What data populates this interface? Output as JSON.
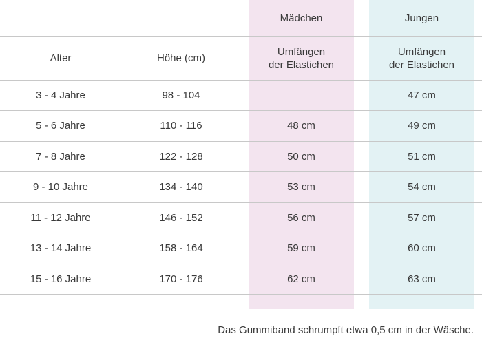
{
  "header": {
    "girls_label": "Mädchen",
    "boys_label": "Jungen",
    "age_label": "Alter",
    "height_label": "Höhe (cm)",
    "girls_measure": "Umfängen\nder Elastichen",
    "boys_measure": "Umfängen\nder Elastichen"
  },
  "rows": [
    {
      "age": "3 - 4 Jahre",
      "height": "98 - 104",
      "girls": "",
      "boys": "47 cm"
    },
    {
      "age": "5 - 6 Jahre",
      "height": "110 - 116",
      "girls": "48 cm",
      "boys": "49 cm"
    },
    {
      "age": "7 - 8 Jahre",
      "height": "122 - 128",
      "girls": "50 cm",
      "boys": "51 cm"
    },
    {
      "age": "9 - 10 Jahre",
      "height": "134 - 140",
      "girls": "53 cm",
      "boys": "54 cm"
    },
    {
      "age": "11 - 12 Jahre",
      "height": "146 - 152",
      "girls": "56 cm",
      "boys": "57 cm"
    },
    {
      "age": "13 - 14 Jahre",
      "height": "158 - 164",
      "girls": "59 cm",
      "boys": "60 cm"
    },
    {
      "age": "15 - 16 Jahre",
      "height": "170 - 176",
      "girls": "62 cm",
      "boys": "63 cm"
    }
  ],
  "footnote": "Das Gummiband schrumpft etwa 0,5 cm in der Wäsche.",
  "colors": {
    "girls_column": "#f3e4ef",
    "boys_column": "#e3f2f4",
    "rule": "#c8c8c8",
    "text": "#3a3a3a"
  }
}
